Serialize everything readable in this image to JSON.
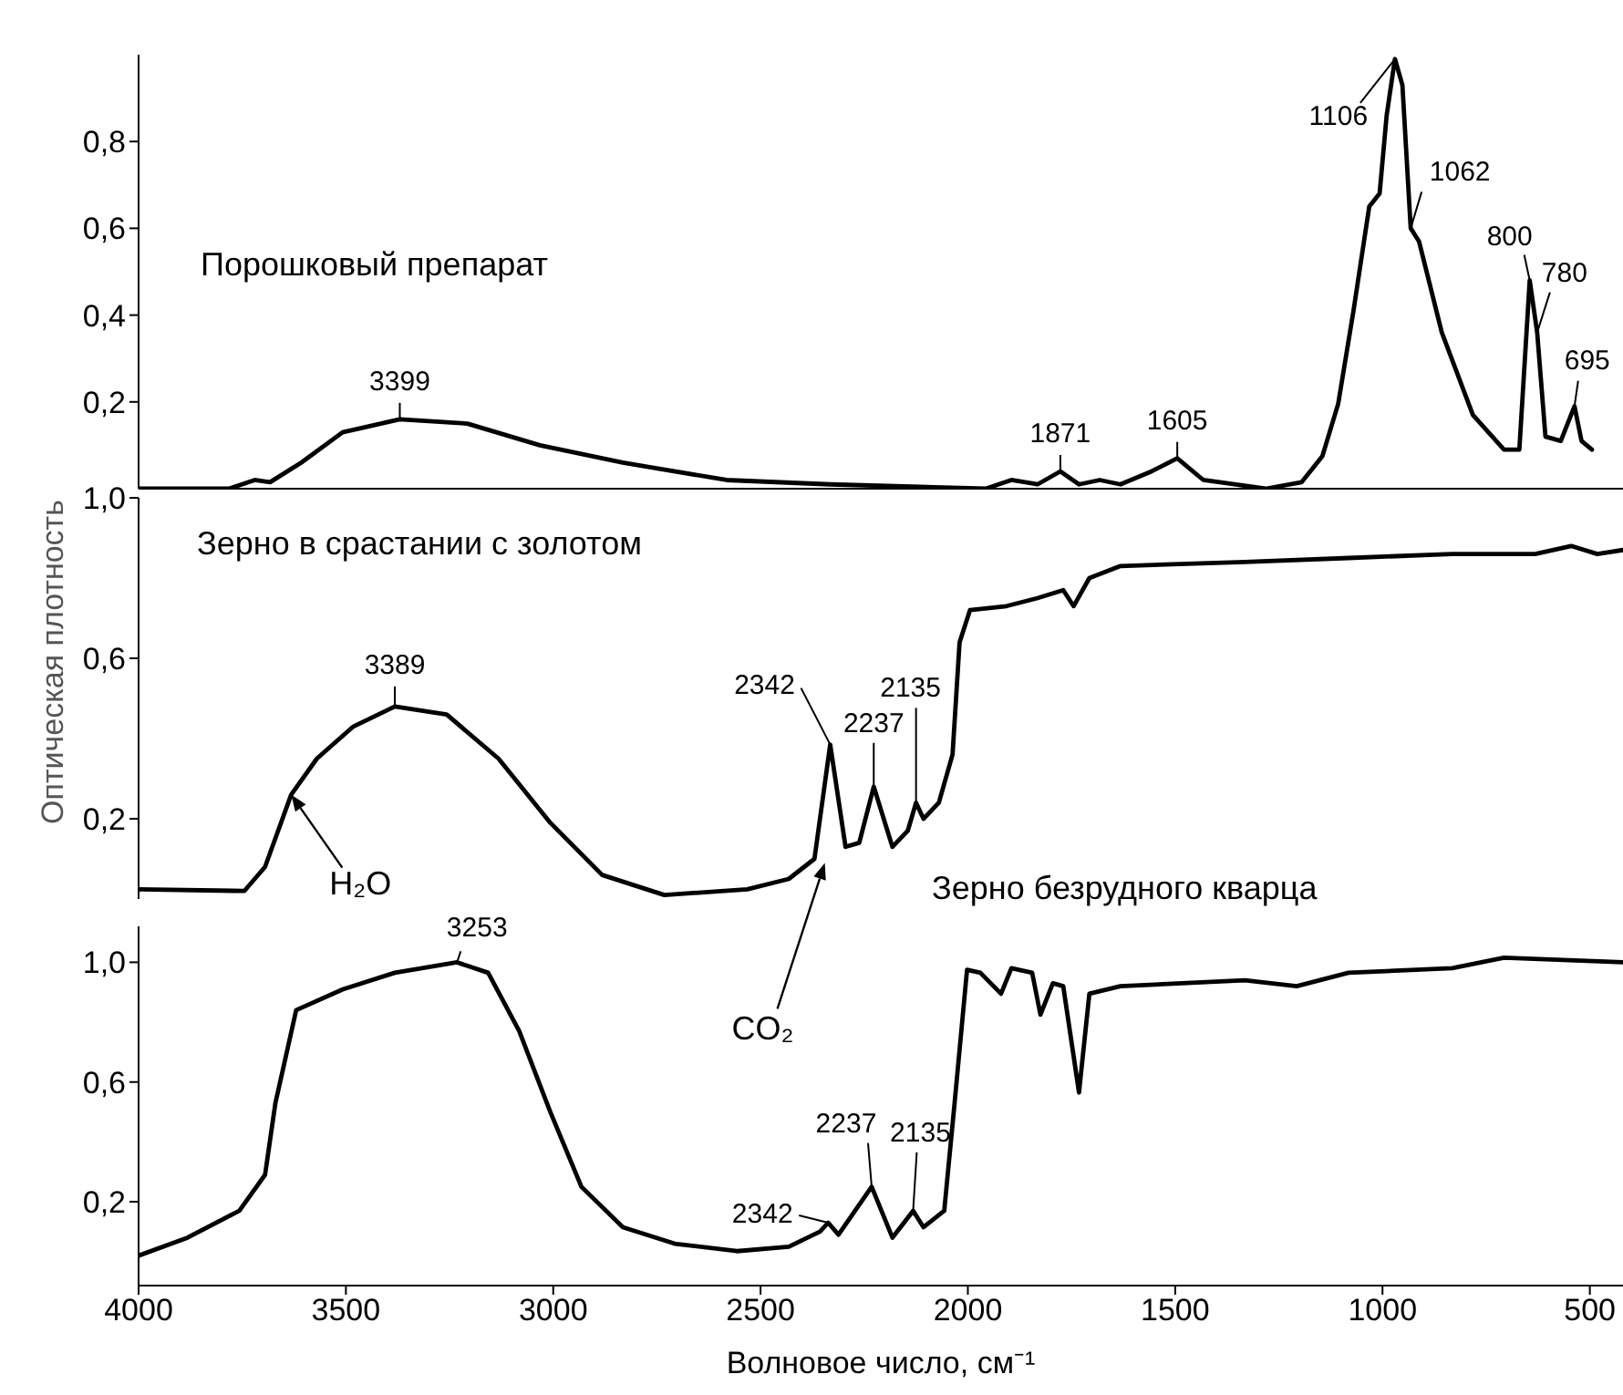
{
  "chart_data": [
    {
      "type": "line",
      "xlim": [
        4000,
        420
      ],
      "ylim": [
        0,
        1.0
      ],
      "yticks": [
        {
          "value": 0.2,
          "label": "0,2"
        },
        {
          "value": 0.4,
          "label": "0,4"
        },
        {
          "value": 0.6,
          "label": "0,6"
        },
        {
          "value": 0.8,
          "label": "0,8"
        }
      ],
      "tick_labels": "y",
      "x": [
        4000,
        3782,
        3720,
        3683,
        3608,
        3508,
        3370,
        3207,
        3032,
        2832,
        2582,
        2332,
        1957,
        1895,
        1832,
        1777,
        1732,
        1682,
        1632,
        1557,
        1495,
        1432,
        1357,
        1282,
        1195,
        1145,
        1107,
        1070,
        1032,
        1007,
        990,
        970,
        952,
        932,
        912,
        857,
        782,
        707,
        670,
        645,
        627,
        607,
        570,
        537,
        520,
        495
      ],
      "series": [
        {
          "name": "Порошковый препарат",
          "color": "#000000",
          "values": [
            0.0,
            0.0,
            0.02,
            0.015,
            0.06,
            0.13,
            0.16,
            0.15,
            0.1,
            0.06,
            0.02,
            0.01,
            0.0,
            0.02,
            0.01,
            0.04,
            0.01,
            0.02,
            0.01,
            0.04,
            0.07,
            0.02,
            0.01,
            0.0,
            0.015,
            0.075,
            0.195,
            0.41,
            0.65,
            0.68,
            0.86,
            0.99,
            0.93,
            0.6,
            0.57,
            0.36,
            0.17,
            0.09,
            0.09,
            0.48,
            0.36,
            0.12,
            0.11,
            0.19,
            0.11,
            0.09
          ]
        }
      ],
      "annotations": [
        {
          "text": "3399",
          "x": 3370,
          "y": 0.16
        },
        {
          "text": "1871",
          "x": 1777,
          "y": 0.04
        },
        {
          "text": "1605",
          "x": 1495,
          "y": 0.07
        },
        {
          "text": "1106",
          "x": 970,
          "y": 0.99
        },
        {
          "text": "1062",
          "x": 932,
          "y": 0.6
        },
        {
          "text": "800",
          "x": 645,
          "y": 0.48
        },
        {
          "text": "780",
          "x": 627,
          "y": 0.36
        },
        {
          "text": "695",
          "x": 537,
          "y": 0.19
        }
      ]
    },
    {
      "type": "line",
      "xlim": [
        4000,
        420
      ],
      "ylim": [
        0,
        1.0
      ],
      "yticks": [
        {
          "value": 0.2,
          "label": "0,2"
        },
        {
          "value": 0.6,
          "label": "0,6"
        },
        {
          "value": 1.0,
          "label": "1,0"
        }
      ],
      "tick_labels": "y",
      "ylabel": "Оптическая плотность",
      "x": [
        4000,
        3745,
        3695,
        3632,
        3570,
        3482,
        3382,
        3257,
        3132,
        3007,
        2882,
        2732,
        2532,
        2432,
        2370,
        2332,
        2295,
        2262,
        2227,
        2182,
        2145,
        2125,
        2107,
        2070,
        2037,
        2020,
        1995,
        1907,
        1832,
        1770,
        1745,
        1707,
        1632,
        1332,
        1082,
        832,
        632,
        545,
        482,
        420
      ],
      "series": [
        {
          "name": "Зерно в срастании с золотом",
          "color": "#000000",
          "values": [
            0.024,
            0.02,
            0.08,
            0.26,
            0.35,
            0.43,
            0.48,
            0.46,
            0.35,
            0.19,
            0.06,
            0.01,
            0.024,
            0.05,
            0.1,
            0.385,
            0.13,
            0.14,
            0.28,
            0.13,
            0.17,
            0.24,
            0.2,
            0.24,
            0.36,
            0.64,
            0.72,
            0.73,
            0.75,
            0.77,
            0.73,
            0.8,
            0.83,
            0.84,
            0.85,
            0.86,
            0.86,
            0.88,
            0.86,
            0.87
          ]
        }
      ],
      "annotations": [
        {
          "text": "3389",
          "x": 3382,
          "y": 0.48
        },
        {
          "text": "2342",
          "x": 2332,
          "y": 0.385
        },
        {
          "text": "2237",
          "x": 2227,
          "y": 0.28
        },
        {
          "text": "2135",
          "x": 2125,
          "y": 0.24
        },
        {
          "text": "H₂O",
          "x": 3632,
          "y": 0.26
        },
        {
          "text": "CO₂",
          "x": 2345,
          "y": 0.09
        }
      ]
    },
    {
      "type": "line",
      "xlim": [
        4000,
        420
      ],
      "xticks": [
        4000,
        3500,
        3000,
        2500,
        2000,
        1500,
        1000,
        500
      ],
      "ylim": [
        -0.08,
        1.12
      ],
      "yticks": [
        {
          "value": 0.2,
          "label": "0,2"
        },
        {
          "value": 0.6,
          "label": "0,6"
        },
        {
          "value": 1.0,
          "label": "1,0"
        }
      ],
      "xlabel": "Волновое число, см⁻¹",
      "x": [
        4000,
        3882,
        3757,
        3695,
        3670,
        3620,
        3507,
        3382,
        3232,
        3157,
        3082,
        3007,
        2932,
        2832,
        2707,
        2557,
        2432,
        2357,
        2337,
        2312,
        2232,
        2182,
        2132,
        2107,
        2057,
        2032,
        2002,
        1970,
        1920,
        1895,
        1845,
        1825,
        1795,
        1770,
        1732,
        1707,
        1632,
        1332,
        1207,
        1082,
        832,
        707,
        420
      ],
      "series": [
        {
          "name": "Зерно безрудного кварца",
          "color": "#000000",
          "values": [
            0.02,
            0.08,
            0.17,
            0.29,
            0.53,
            0.84,
            0.91,
            0.965,
            1.0,
            0.965,
            0.77,
            0.5,
            0.25,
            0.115,
            0.06,
            0.035,
            0.05,
            0.1,
            0.13,
            0.09,
            0.25,
            0.08,
            0.17,
            0.115,
            0.17,
            0.53,
            0.975,
            0.965,
            0.895,
            0.98,
            0.965,
            0.825,
            0.93,
            0.92,
            0.565,
            0.895,
            0.92,
            0.94,
            0.92,
            0.965,
            0.98,
            1.015,
            1.0
          ]
        }
      ],
      "annotations": [
        {
          "text": "3253",
          "x": 3232,
          "y": 1.0
        },
        {
          "text": "2342",
          "x": 2337,
          "y": 0.13
        },
        {
          "text": "2237",
          "x": 2232,
          "y": 0.25
        },
        {
          "text": "2135",
          "x": 2132,
          "y": 0.17
        }
      ]
    }
  ]
}
